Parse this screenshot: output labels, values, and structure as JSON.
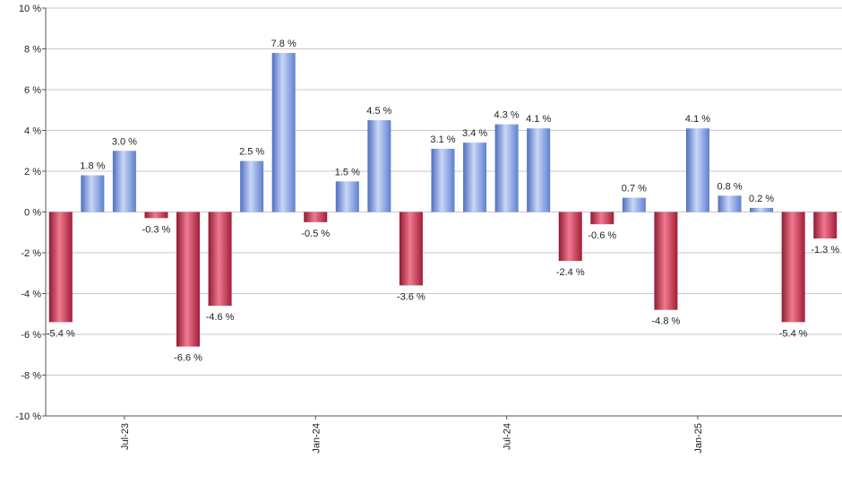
{
  "chart_data": {
    "type": "bar",
    "title": "",
    "xlabel": "",
    "ylabel": "",
    "ylim": [
      -10,
      10
    ],
    "y_ticks": [
      -10,
      -8,
      -6,
      -4,
      -2,
      0,
      2,
      4,
      6,
      8,
      10
    ],
    "y_tick_suffix": " %",
    "grid": true,
    "values": [
      -5.4,
      1.8,
      3.0,
      -0.3,
      -6.6,
      -4.6,
      2.5,
      7.8,
      -0.5,
      1.5,
      4.5,
      -3.6,
      3.1,
      3.4,
      4.3,
      4.1,
      -2.4,
      -0.6,
      0.7,
      -4.8,
      4.1,
      0.8,
      0.2,
      -5.4,
      -1.3
    ],
    "data_labels": [
      "-5.4 %",
      "1.8 %",
      "3.0 %",
      "-0.3 %",
      "-6.6 %",
      "-4.6 %",
      "2.5 %",
      "7.8 %",
      "-0.5 %",
      "1.5 %",
      "4.5 %",
      "-3.6 %",
      "3.1 %",
      "3.4 %",
      "4.3 %",
      "4.1 %",
      "-2.4 %",
      "-0.6 %",
      "0.7 %",
      "-4.8 %",
      "4.1 %",
      "0.8 %",
      "0.2 %",
      "-5.4 %",
      "-1.3 %"
    ],
    "x_tick_labels": [
      {
        "label": "Jul-23",
        "index": 2
      },
      {
        "label": "Jan-24",
        "index": 8
      },
      {
        "label": "Jul-24",
        "index": 14
      },
      {
        "label": "Jan-25",
        "index": 20
      }
    ],
    "colors": {
      "positive": "#6f8fdc",
      "positive_light": "#c9d7f7",
      "negative": "#b8223f",
      "negative_light": "#f17a8e",
      "grid": "#c8c8c8",
      "axis": "#555555"
    }
  }
}
